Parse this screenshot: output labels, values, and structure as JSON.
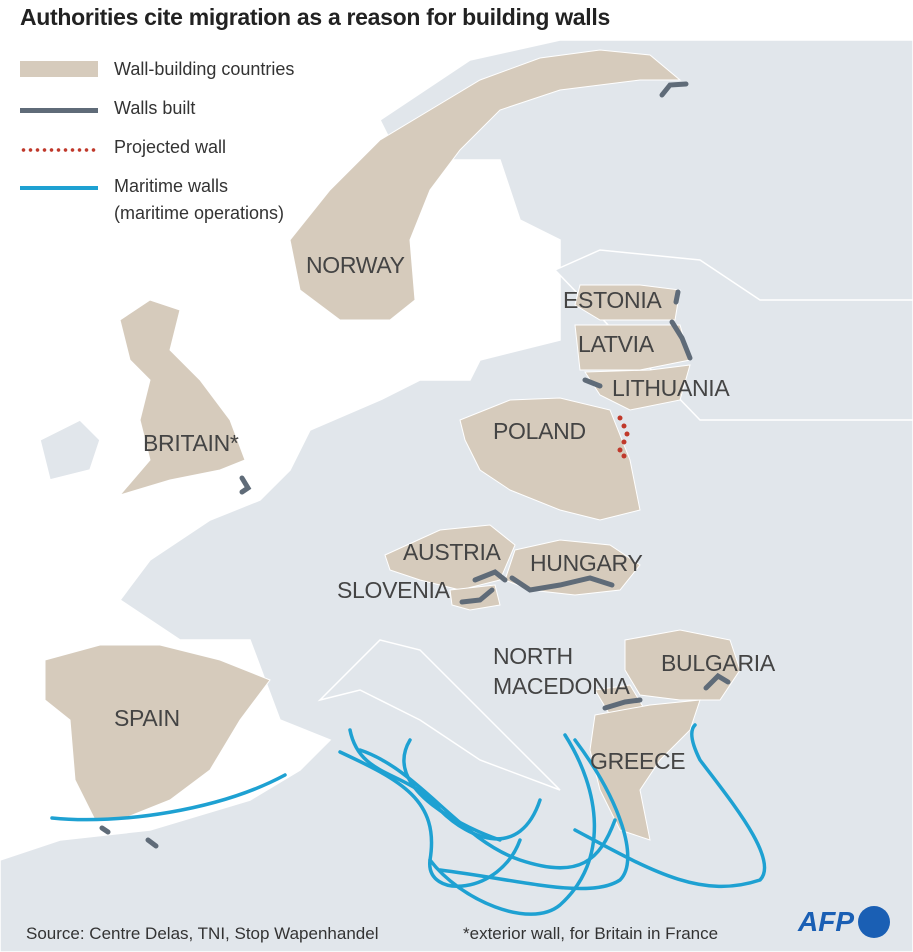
{
  "title": "Authorities cite migration as a reason for building walls",
  "legend": [
    {
      "label": "Wall-building countries",
      "type": "fill",
      "color": "#d6cbbc"
    },
    {
      "label": "Walls built",
      "type": "line",
      "color": "#5f6b78"
    },
    {
      "label": "Projected wall",
      "type": "dots",
      "color": "#c0392b"
    },
    {
      "label": "Maritime walls",
      "label2": "(maritime operations)",
      "type": "line",
      "color": "#1ea1d2"
    }
  ],
  "countries": [
    "NORWAY",
    "ESTONIA",
    "LATVIA",
    "LITHUANIA",
    "POLAND",
    "BRITAIN*",
    "AUSTRIA",
    "HUNGARY",
    "SLOVENIA",
    "NORTH",
    "MACEDONIA",
    "BULGARIA",
    "SPAIN",
    "GREECE"
  ],
  "colors": {
    "sea": "#ffffff",
    "land": "#e1e6eb",
    "wall_country": "#d6cbbc",
    "wall": "#5f6b78",
    "maritime": "#1ea1d2",
    "projected": "#c0392b",
    "afp": "#1a5fb4"
  },
  "source": "Source: Centre Delas, TNI, Stop Wapenhandel",
  "footnote": "*exterior wall, for Britain in France",
  "logo": "AFP"
}
